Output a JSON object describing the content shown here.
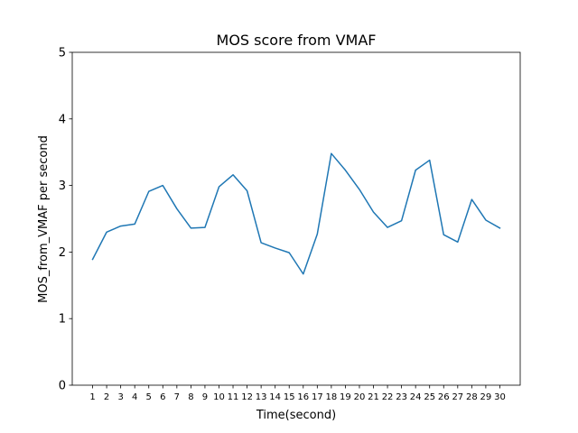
{
  "chart_data": {
    "type": "line",
    "title": "MOS score from VMAF",
    "xlabel": "Time(second)",
    "ylabel": "MOS_from_VMAF per second",
    "x": [
      1,
      2,
      3,
      4,
      5,
      6,
      7,
      8,
      9,
      10,
      11,
      12,
      13,
      14,
      15,
      16,
      17,
      18,
      19,
      20,
      21,
      22,
      23,
      24,
      25,
      26,
      27,
      28,
      29,
      30
    ],
    "xtick_labels": [
      "1",
      "2",
      "3",
      "4",
      "5",
      "6",
      "7",
      "8",
      "9",
      "10",
      "11",
      "12",
      "13",
      "14",
      "15",
      "16",
      "17",
      "18",
      "19",
      "20",
      "21",
      "22",
      "23",
      "24",
      "25",
      "26",
      "27",
      "28",
      "29",
      "30"
    ],
    "ylim": [
      0,
      5
    ],
    "yticks": [
      0,
      1,
      2,
      3,
      4,
      5
    ],
    "ytick_labels": [
      "0",
      "1",
      "2",
      "3",
      "4",
      "5"
    ],
    "grid": false,
    "series": [
      {
        "color": "#1f77b4",
        "values": [
          1.89,
          2.3,
          2.39,
          2.42,
          2.91,
          3.0,
          2.65,
          2.36,
          2.37,
          2.98,
          3.16,
          2.92,
          2.14,
          2.06,
          1.99,
          1.67,
          2.27,
          3.48,
          3.23,
          2.94,
          2.6,
          2.37,
          2.47,
          3.23,
          3.38,
          2.26,
          2.15,
          2.79,
          2.48,
          2.36
        ]
      }
    ]
  }
}
